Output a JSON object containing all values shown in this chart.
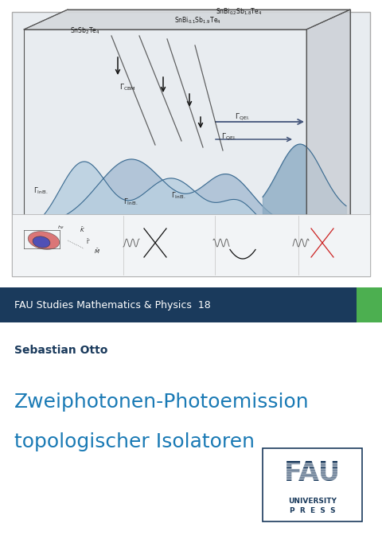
{
  "bg_color": "#ffffff",
  "banner_color": "#1a3a5c",
  "banner_text": "FAU Studies Mathematics & Physics  18",
  "banner_text_color": "#ffffff",
  "banner_green_color": "#4caf50",
  "author": "Sebastian Otto",
  "author_color": "#1a3a5c",
  "title_line1": "Zweiphotonen-Photoemission",
  "title_line2": "topologischer Isolatoren",
  "title_color": "#1a7ab5",
  "cover_image_bg": "#e8ecf0",
  "box_col": "#555555",
  "curve_fill1": "#b8cfe0",
  "curve_fill2": "#a0b8d0",
  "curve_fill3": "#8aaac2",
  "curve_line": "#3a6a90",
  "top_face_color": "#d5d8dc",
  "right_face_color": "#c8cdd3",
  "fau_color": "#1a3a5c"
}
